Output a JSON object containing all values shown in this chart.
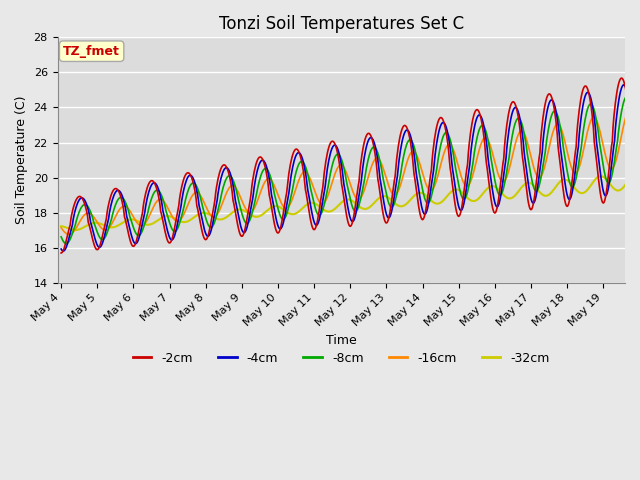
{
  "title": "Tonzi Soil Temperatures Set C",
  "xlabel": "Time",
  "ylabel": "Soil Temperature (C)",
  "ylim": [
    14,
    28
  ],
  "ytick_positions": [
    14,
    16,
    18,
    20,
    22,
    24,
    26,
    28
  ],
  "xtick_labels": [
    "May 4",
    "May 5",
    "May 6",
    "May 7",
    "May 8",
    "May 9",
    "May 10",
    "May 11",
    "May 12",
    "May 13",
    "May 14",
    "May 15",
    "May 16",
    "May 17",
    "May 18",
    "May 19"
  ],
  "legend_labels": [
    "-2cm",
    "-4cm",
    "-8cm",
    "-16cm",
    "-32cm"
  ],
  "legend_colors": [
    "#cc0000",
    "#0000cc",
    "#00aa00",
    "#ff8800",
    "#cccc00"
  ],
  "annotation_text": "TZ_fmet",
  "annotation_color": "#cc0000",
  "annotation_bg": "#ffffcc",
  "annotation_edge": "#aaaaaa",
  "fig_bg": "#e8e8e8",
  "plot_bg": "#dcdcdc",
  "grid_color": "#ffffff",
  "title_fontsize": 12,
  "label_fontsize": 9,
  "tick_fontsize": 8,
  "legend_fontsize": 9
}
